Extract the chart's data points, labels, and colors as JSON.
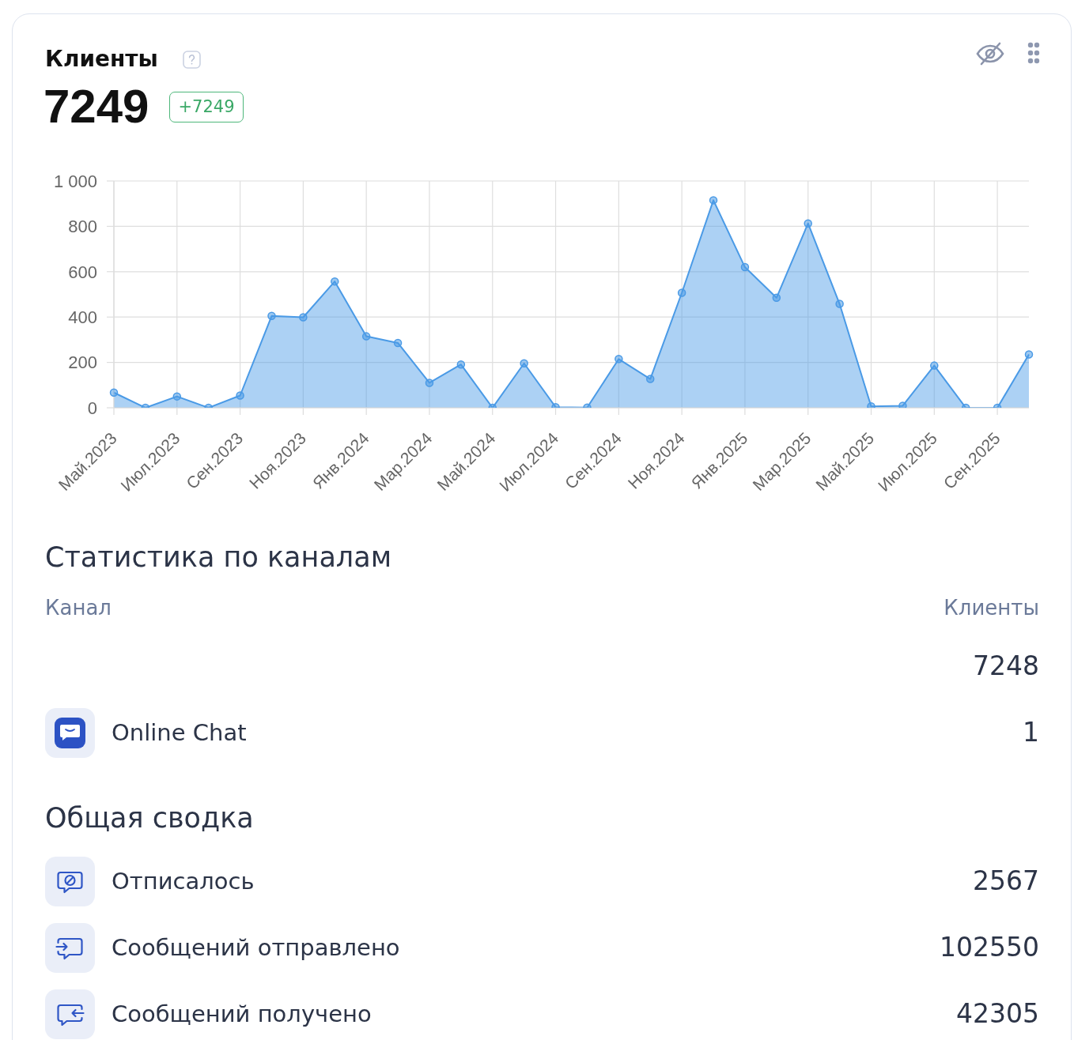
{
  "chart_data": [
    {
      "type": "area",
      "title": "Клиенты",
      "subtitle": "7249",
      "annotations": [
        "+7249"
      ],
      "categories": [
        "Май.2023",
        null,
        "Июл.2023",
        null,
        "Сен.2023",
        null,
        "Ноя.2023",
        null,
        "Янв.2024",
        null,
        "Мар.2024",
        null,
        "Май.2024",
        null,
        "Июл.2024",
        null,
        "Сен.2024",
        null,
        "Ноя.2024",
        null,
        "Янв.2025",
        null,
        "Мар.2025",
        null,
        "Май.2025",
        null,
        "Июл.2025",
        null,
        "Сен.2025",
        null
      ],
      "values": [
        67,
        0,
        50,
        0,
        54,
        405,
        399,
        557,
        315,
        286,
        110,
        191,
        0,
        196,
        3,
        1,
        215,
        127,
        507,
        915,
        620,
        485,
        813,
        458,
        6,
        9,
        186,
        0,
        0,
        235
      ],
      "color": "#4a9ae6",
      "ylim": [
        0,
        1000
      ],
      "yticks": [
        0,
        200,
        400,
        600,
        800,
        {
          "value": 1000,
          "label": "1 000"
        }
      ],
      "grid": true,
      "marker": "circle"
    },
    {
      "type": "other",
      "title": "Статистика по каналам",
      "xlabel": "Канал",
      "ylabel": "Клиенты",
      "categories": [
        null,
        "Online Chat"
      ],
      "values": [
        7248,
        1
      ],
      "data_labels": true
    },
    {
      "type": "other",
      "title": "Общая сводка",
      "categories": [
        "Отписалось",
        "Сообщений отправлено",
        "Сообщений получено"
      ],
      "values": [
        2567,
        102550,
        42305
      ],
      "data_labels": true
    }
  ]
}
